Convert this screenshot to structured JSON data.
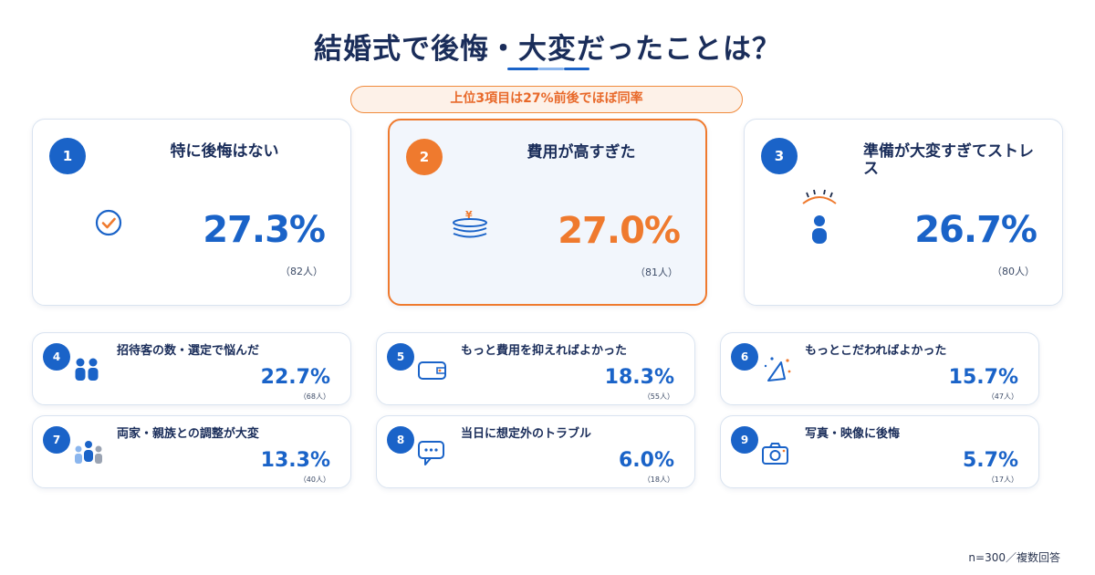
{
  "title": "結婚式で後悔・大変だったことは？",
  "highlight": "上位3項目は27%前後でほぼ同率",
  "footnote": "n=300／複数回答",
  "colors": {
    "primary": "#1a63c8",
    "accent": "#ef7a2e",
    "title": "#1a2d5a"
  },
  "items": [
    {
      "rank": "1",
      "label": "特に後悔はない",
      "pct": "27.3%",
      "count": "（82人）",
      "icon": "check-circle-icon"
    },
    {
      "rank": "2",
      "label": "費用が高すぎた",
      "pct": "27.0%",
      "count": "（81人）",
      "icon": "coin-stack-icon"
    },
    {
      "rank": "3",
      "label": "準備が大変すぎてストレス",
      "pct": "26.7%",
      "count": "（80人）",
      "icon": "stressed-person-icon"
    },
    {
      "rank": "4",
      "label": "招待客の数・選定で悩んだ",
      "pct": "22.7%",
      "count": "（68人）",
      "icon": "people-icon"
    },
    {
      "rank": "5",
      "label": "もっと費用を抑えればよかった",
      "pct": "18.3%",
      "count": "（55人）",
      "icon": "wallet-icon"
    },
    {
      "rank": "6",
      "label": "もっとこだわればよかった",
      "pct": "15.7%",
      "count": "（47人）",
      "icon": "party-hat-icon"
    },
    {
      "rank": "7",
      "label": "両家・親族との調整が大変",
      "pct": "13.3%",
      "count": "（40人）",
      "icon": "family-icon"
    },
    {
      "rank": "8",
      "label": "当日に想定外のトラブル",
      "pct": "6.0%",
      "count": "（18人）",
      "icon": "speech-bubble-icon"
    },
    {
      "rank": "9",
      "label": "写真・映像に後悔",
      "pct": "5.7%",
      "count": "（17人）",
      "icon": "camera-icon"
    }
  ],
  "chart_data": {
    "type": "table",
    "title": "結婚式で後悔・大変だったことは？",
    "categories": [
      "特に後悔はない",
      "費用が高すぎた",
      "準備が大変すぎてストレス",
      "招待客の数・選定で悩んだ",
      "もっと費用を抑えればよかった",
      "もっとこだわればよかった",
      "両家・親族との調整が大変",
      "当日に想定外のトラブル",
      "写真・映像に後悔"
    ],
    "series": [
      {
        "values": [
          27.3,
          27.0,
          26.7,
          22.7,
          18.3,
          15.7,
          13.3,
          6.0,
          5.7
        ]
      },
      {
        "values": [
          82,
          81,
          80,
          68,
          55,
          47,
          40,
          18,
          17
        ]
      }
    ]
  }
}
